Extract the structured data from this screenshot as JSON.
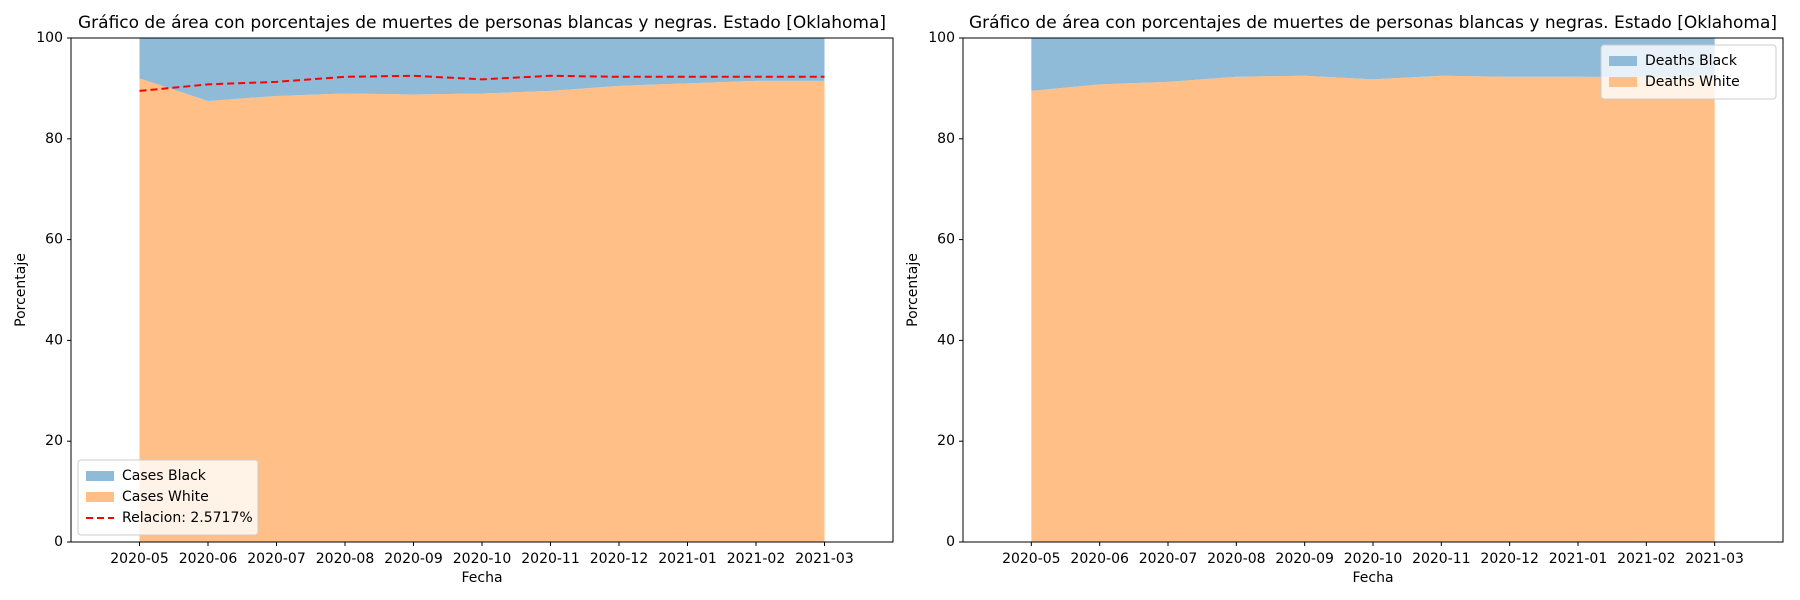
{
  "chart_data": [
    {
      "type": "area",
      "title": "Gráfico de área con porcentajes de muertes de personas blancas y negras. Estado [Oklahoma]",
      "x_label": "Fecha",
      "y_label": "Porcentaje",
      "x": [
        "2020-05",
        "2020-06",
        "2020-07",
        "2020-08",
        "2020-09",
        "2020-10",
        "2020-11",
        "2020-12",
        "2021-01",
        "2021-02",
        "2021-03"
      ],
      "series": [
        {
          "name": "Cases Black",
          "color": "#8fbbd9",
          "values": [
            8,
            12.5,
            11.5,
            11,
            11.2,
            11,
            10.5,
            9.5,
            9,
            8.5,
            8.5
          ]
        },
        {
          "name": "Cases White",
          "color": "#ffbf86",
          "values": [
            92,
            87.5,
            88.5,
            89,
            88.8,
            89,
            89.5,
            90.5,
            91,
            91.5,
            91.5
          ]
        },
        {
          "name": "Relacion: 2.5717%",
          "color": "#ff0000",
          "style": "dashed",
          "values": [
            89.5,
            90.8,
            91.3,
            92.3,
            92.5,
            91.8,
            92.5,
            92.3,
            92.3,
            92.3,
            92.3
          ]
        }
      ],
      "xlim": [
        "2020-04",
        "2021-04"
      ],
      "xticks": [
        "2020-05",
        "2020-06",
        "2020-07",
        "2020-08",
        "2020-09",
        "2020-10",
        "2020-11",
        "2020-12",
        "2021-01",
        "2021-02",
        "2021-03"
      ],
      "ylim": [
        0,
        100
      ],
      "yticks": [
        0,
        20,
        40,
        60,
        80,
        100
      ],
      "legend": "lower left",
      "grid": false
    },
    {
      "type": "area",
      "title": "Gráfico de área con porcentajes de muertes de personas blancas y negras. Estado [Oklahoma]",
      "x_label": "Fecha",
      "y_label": "Porcentaje",
      "x": [
        "2020-05",
        "2020-06",
        "2020-07",
        "2020-08",
        "2020-09",
        "2020-10",
        "2020-11",
        "2020-12",
        "2021-01",
        "2021-02",
        "2021-03"
      ],
      "series": [
        {
          "name": "Deaths Black",
          "color": "#8fbbd9",
          "values": [
            10.5,
            9.2,
            8.7,
            7.7,
            7.5,
            8.2,
            7.5,
            7.7,
            7.7,
            7.8,
            7.7
          ]
        },
        {
          "name": "Deaths White",
          "color": "#ffbf86",
          "values": [
            89.5,
            90.8,
            91.3,
            92.3,
            92.5,
            91.8,
            92.5,
            92.3,
            92.3,
            92.2,
            92.3
          ]
        }
      ],
      "xlim": [
        "2020-04",
        "2021-04"
      ],
      "xticks": [
        "2020-05",
        "2020-06",
        "2020-07",
        "2020-08",
        "2020-09",
        "2020-10",
        "2020-11",
        "2020-12",
        "2021-01",
        "2021-02",
        "2021-03"
      ],
      "ylim": [
        0,
        100
      ],
      "yticks": [
        0,
        20,
        40,
        60,
        80,
        100
      ],
      "legend": "upper right",
      "grid": false
    }
  ]
}
